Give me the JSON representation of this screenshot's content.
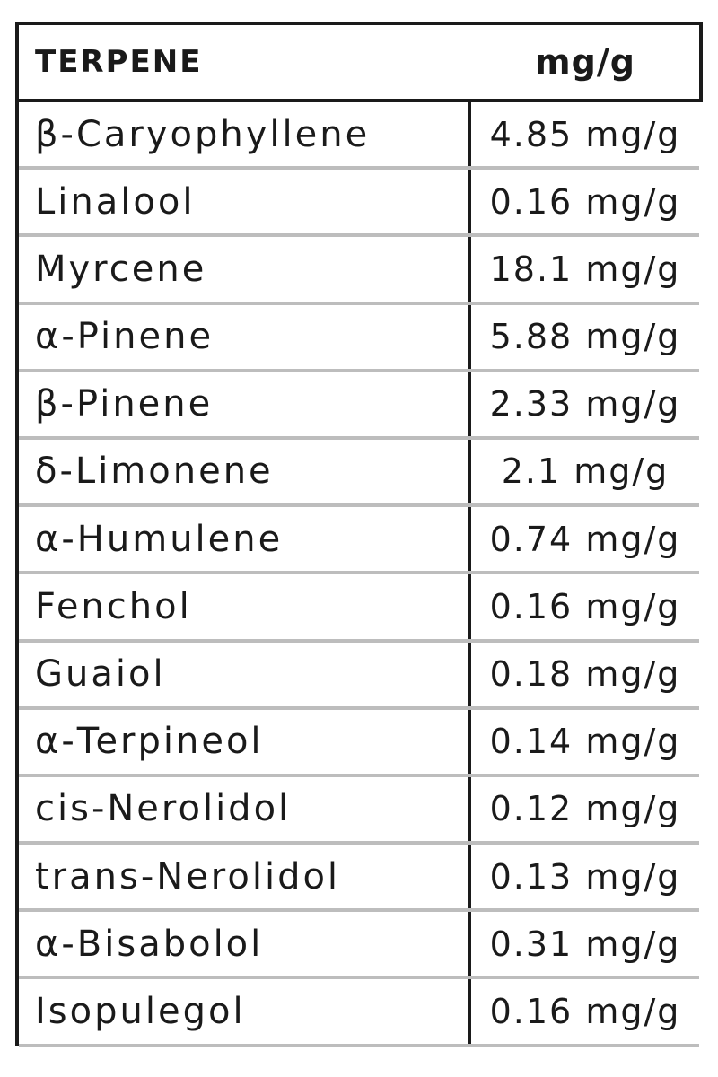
{
  "table": {
    "headers": {
      "terpene": "TERPENE",
      "unit": "mg/g"
    },
    "rows": [
      {
        "name": "β-Caryophyllene",
        "value": "4.85 mg/g"
      },
      {
        "name": "Linalool",
        "value": "0.16 mg/g"
      },
      {
        "name": "Myrcene",
        "value": "18.1 mg/g"
      },
      {
        "name": "α-Pinene",
        "value": "5.88 mg/g"
      },
      {
        "name": "β-Pinene",
        "value": "2.33 mg/g"
      },
      {
        "name": "δ-Limonene",
        "value": "2.1 mg/g"
      },
      {
        "name": "α-Humulene",
        "value": "0.74 mg/g"
      },
      {
        "name": "Fenchol",
        "value": "0.16 mg/g"
      },
      {
        "name": "Guaiol",
        "value": "0.18 mg/g"
      },
      {
        "name": "α-Terpineol",
        "value": "0.14 mg/g"
      },
      {
        "name": "cis-Nerolidol",
        "value": "0.12 mg/g"
      },
      {
        "name": "trans-Nerolidol",
        "value": "0.13 mg/g"
      },
      {
        "name": "α-Bisabolol",
        "value": "0.31 mg/g"
      },
      {
        "name": "Isopulegol",
        "value": "0.16 mg/g"
      }
    ],
    "colors": {
      "border": "#1a1a1a",
      "row_divider": "#bdbdbd",
      "background": "#ffffff"
    }
  }
}
